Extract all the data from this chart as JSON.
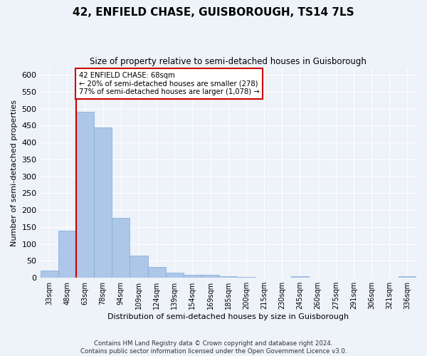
{
  "title": "42, ENFIELD CHASE, GUISBOROUGH, TS14 7LS",
  "subtitle": "Size of property relative to semi-detached houses in Guisborough",
  "xlabel": "Distribution of semi-detached houses by size in Guisborough",
  "ylabel": "Number of semi-detached properties",
  "footer_line1": "Contains HM Land Registry data © Crown copyright and database right 2024.",
  "footer_line2": "Contains public sector information licensed under the Open Government Licence v3.0.",
  "categories": [
    "33sqm",
    "48sqm",
    "63sqm",
    "78sqm",
    "94sqm",
    "109sqm",
    "124sqm",
    "139sqm",
    "154sqm",
    "169sqm",
    "185sqm",
    "200sqm",
    "215sqm",
    "230sqm",
    "245sqm",
    "260sqm",
    "275sqm",
    "291sqm",
    "306sqm",
    "321sqm",
    "336sqm"
  ],
  "values": [
    22,
    140,
    490,
    445,
    178,
    65,
    32,
    15,
    8,
    8,
    5,
    2,
    0,
    0,
    4,
    0,
    0,
    0,
    0,
    0,
    4
  ],
  "bar_color": "#aec6e8",
  "bar_edge_color": "#7aacd6",
  "property_line_bin": 2,
  "property_sqm": 68,
  "property_label": "42 ENFIELD CHASE: 68sqm",
  "pct_smaller": 20,
  "pct_larger": 77,
  "n_smaller": 278,
  "n_larger": 1078,
  "annotation_box_color": "#ffffff",
  "annotation_box_edge": "#cc0000",
  "line_color": "#cc0000",
  "ylim": [
    0,
    620
  ],
  "yticks": [
    0,
    50,
    100,
    150,
    200,
    250,
    300,
    350,
    400,
    450,
    500,
    550,
    600
  ],
  "background_color": "#eef2f9",
  "grid_color": "#ffffff"
}
